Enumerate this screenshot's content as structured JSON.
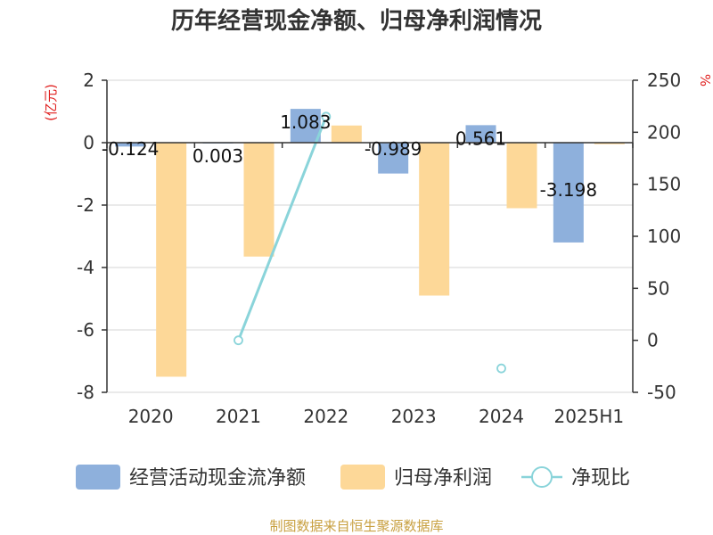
{
  "title": "历年经营现金净额、归母净利润情况",
  "source": "制图数据来自恒生聚源数据库",
  "colors": {
    "cash": "#8eb0dc",
    "profit": "#fdd898",
    "ratio": "#8ad4da",
    "grid": "#d4d4d4",
    "axis": "#333333"
  },
  "chart_data": {
    "type": "bar",
    "categories": [
      "2020",
      "2021",
      "2022",
      "2023",
      "2024",
      "2025H1"
    ],
    "y_left": {
      "unit": "(亿元)",
      "ylim": [
        -8,
        2
      ],
      "ticks": [
        2,
        0,
        -2,
        -4,
        -6,
        -8
      ]
    },
    "y_right": {
      "unit": "%",
      "ylim": [
        -50,
        250
      ],
      "ticks": [
        250,
        200,
        150,
        100,
        50,
        0,
        -50
      ]
    },
    "grid": true,
    "legend_position": "bottom",
    "series": [
      {
        "name": "经营活动现金流净额",
        "type": "bar",
        "axis": "left",
        "values": [
          -0.124,
          0.003,
          1.083,
          -0.989,
          0.561,
          -3.198
        ],
        "labels": [
          "-0.124",
          "0.003",
          "1.083",
          "-0.989",
          "0.561",
          "-3.198"
        ]
      },
      {
        "name": "归母净利润",
        "type": "bar",
        "axis": "left",
        "values": [
          -7.5,
          -3.65,
          0.55,
          -4.9,
          -2.1,
          -0.05
        ]
      },
      {
        "name": "净现比",
        "type": "line",
        "axis": "right",
        "values": [
          null,
          0,
          215,
          null,
          -27,
          null
        ]
      }
    ]
  }
}
